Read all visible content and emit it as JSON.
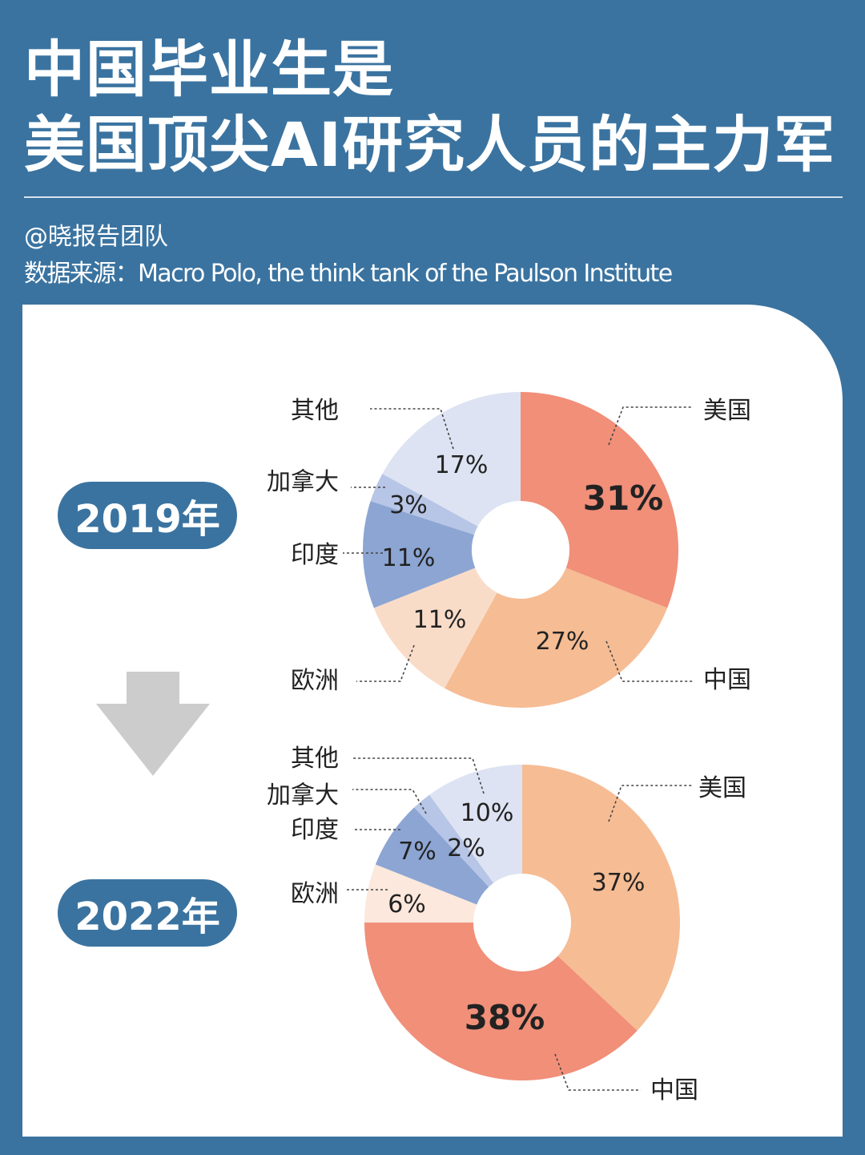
{
  "title": {
    "line1": "中国毕业生是",
    "line2": "美国顶尖AI研究人员的主力军"
  },
  "author": "@晓报告团队",
  "source": "数据来源：Macro Polo, the think tank of the Paulson Institute",
  "colors": {
    "background": "#3a73a0",
    "card": "#ffffff",
    "arrow": "#cccccc",
    "slice_top": "#f18f79",
    "slice_second": "#f6bc94",
    "slice_europe_2019": "#f9dcc8",
    "slice_europe_2022": "#fce8dc",
    "slice_india": "#8ca5d3",
    "slice_canada": "#b7c5e6",
    "slice_other": "#dde3f2"
  },
  "chart_data": [
    {
      "type": "pie",
      "year_label": "2019年",
      "categories": [
        "美国",
        "中国",
        "欧洲",
        "印度",
        "加拿大",
        "其他"
      ],
      "values": [
        31,
        27,
        11,
        11,
        3,
        17
      ],
      "labels": [
        "31%",
        "27%",
        "11%",
        "11%",
        "3%",
        "17%"
      ],
      "colors": [
        "#f18f79",
        "#f6bc94",
        "#f9dcc8",
        "#8ca5d3",
        "#b7c5e6",
        "#dde3f2"
      ],
      "unit": "%"
    },
    {
      "type": "pie",
      "year_label": "2022年",
      "categories": [
        "美国",
        "中国",
        "欧洲",
        "印度",
        "加拿大",
        "其他"
      ],
      "values": [
        37,
        38,
        6,
        7,
        2,
        10
      ],
      "labels": [
        "37%",
        "38%",
        "6%",
        "7%",
        "2%",
        "10%"
      ],
      "colors": [
        "#f6bc94",
        "#f18f79",
        "#fce8dc",
        "#8ca5d3",
        "#b7c5e6",
        "#dde3f2"
      ],
      "unit": "%"
    }
  ]
}
